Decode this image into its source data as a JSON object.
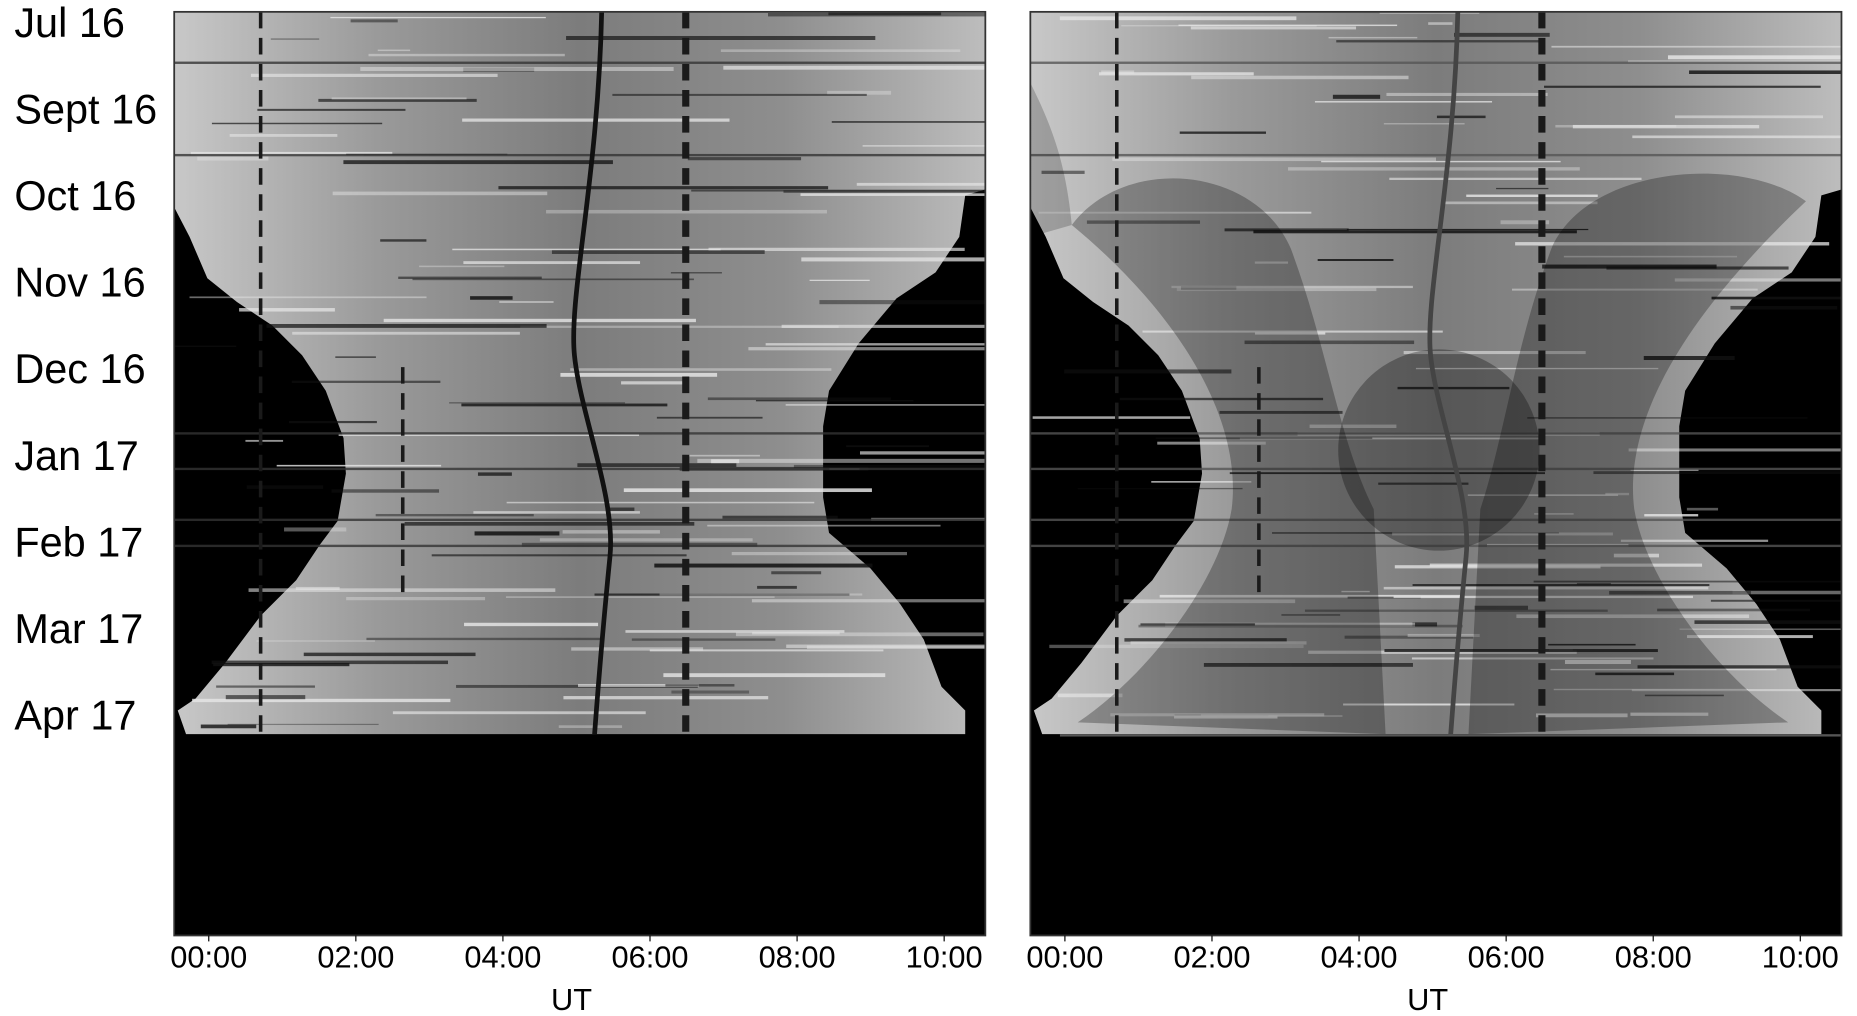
{
  "chart_data": [
    {
      "type": "keogram",
      "y_categories": [
        "Jul 16",
        "Sept 16",
        "Oct 16",
        "Nov 16",
        "Dec 16",
        "Jan 17",
        "Feb 17",
        "Mar 17",
        "Apr 17"
      ],
      "xlim": [
        -0.47,
        10.56
      ],
      "xticks": [
        {
          "value": 0,
          "label": "00:00"
        },
        {
          "value": 2,
          "label": "02:00"
        },
        {
          "value": 4,
          "label": "04:00"
        },
        {
          "value": 6,
          "label": "06:00"
        },
        {
          "value": 8,
          "label": "08:00"
        },
        {
          "value": 10,
          "label": "10:00"
        }
      ],
      "xlabel": "UT"
    },
    {
      "type": "keogram",
      "xlim": [
        -0.47,
        10.56
      ],
      "xticks": [
        {
          "value": 0,
          "label": "00:00"
        },
        {
          "value": 2,
          "label": "02:00"
        },
        {
          "value": 4,
          "label": "04:00"
        },
        {
          "value": 6,
          "label": "06:00"
        },
        {
          "value": 8,
          "label": "08:00"
        },
        {
          "value": 10,
          "label": "10:00"
        }
      ],
      "xlabel": "UT"
    }
  ]
}
